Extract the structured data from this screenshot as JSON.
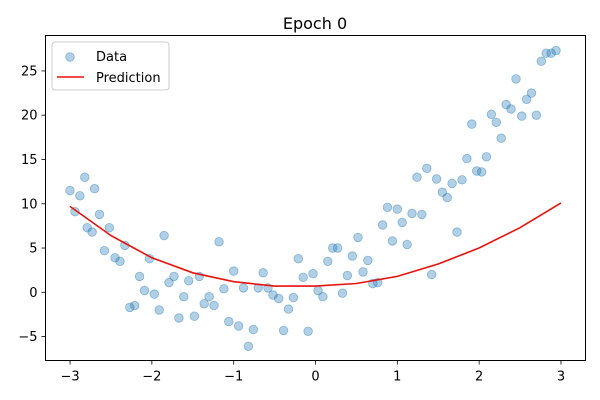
{
  "chart_data": {
    "type": "scatter",
    "title": "Epoch 0",
    "xlabel": "",
    "ylabel": "",
    "xlim": [
      -3.3,
      3.3
    ],
    "ylim": [
      -7.7,
      29.0
    ],
    "xticks": [
      -3,
      -2,
      -1,
      0,
      1,
      2,
      3
    ],
    "yticks": [
      -5,
      0,
      5,
      10,
      15,
      20,
      25
    ],
    "grid": false,
    "legend": {
      "placement": "top-left",
      "entries": [
        "Data",
        "Prediction"
      ]
    },
    "colors": {
      "data": "#1f77b4",
      "prediction": "#e8120c"
    },
    "series": [
      {
        "name": "Data",
        "kind": "scatter",
        "points": [
          [
            -3.0,
            11.5
          ],
          [
            -2.94,
            9.1
          ],
          [
            -2.88,
            10.9
          ],
          [
            -2.82,
            13.0
          ],
          [
            -2.79,
            7.3
          ],
          [
            -2.73,
            6.8
          ],
          [
            -2.7,
            11.7
          ],
          [
            -2.64,
            8.8
          ],
          [
            -2.58,
            4.7
          ],
          [
            -2.52,
            7.3
          ],
          [
            -2.45,
            3.9
          ],
          [
            -2.39,
            3.5
          ],
          [
            -2.33,
            5.3
          ],
          [
            -2.27,
            -1.7
          ],
          [
            -2.21,
            -1.5
          ],
          [
            -2.15,
            1.8
          ],
          [
            -2.09,
            0.2
          ],
          [
            -2.03,
            3.8
          ],
          [
            -1.97,
            -0.2
          ],
          [
            -1.91,
            -2.0
          ],
          [
            -1.85,
            6.4
          ],
          [
            -1.79,
            1.1
          ],
          [
            -1.73,
            1.8
          ],
          [
            -1.67,
            -2.9
          ],
          [
            -1.61,
            -0.5
          ],
          [
            -1.55,
            1.3
          ],
          [
            -1.48,
            -2.7
          ],
          [
            -1.42,
            1.8
          ],
          [
            -1.36,
            -1.3
          ],
          [
            -1.3,
            -0.5
          ],
          [
            -1.24,
            -1.5
          ],
          [
            -1.18,
            5.7
          ],
          [
            -1.12,
            0.4
          ],
          [
            -1.06,
            -3.3
          ],
          [
            -1.0,
            2.4
          ],
          [
            -0.94,
            -3.8
          ],
          [
            -0.88,
            0.5
          ],
          [
            -0.82,
            -6.1
          ],
          [
            -0.76,
            -4.2
          ],
          [
            -0.7,
            0.5
          ],
          [
            -0.64,
            2.2
          ],
          [
            -0.58,
            0.5
          ],
          [
            -0.52,
            -0.3
          ],
          [
            -0.45,
            -0.7
          ],
          [
            -0.39,
            -4.3
          ],
          [
            -0.33,
            -1.9
          ],
          [
            -0.27,
            -0.6
          ],
          [
            -0.21,
            3.8
          ],
          [
            -0.15,
            1.7
          ],
          [
            -0.09,
            -4.4
          ],
          [
            -0.03,
            2.1
          ],
          [
            0.03,
            0.2
          ],
          [
            0.09,
            -0.5
          ],
          [
            0.15,
            3.5
          ],
          [
            0.21,
            5.0
          ],
          [
            0.27,
            5.0
          ],
          [
            0.33,
            -0.1
          ],
          [
            0.39,
            1.9
          ],
          [
            0.45,
            4.1
          ],
          [
            0.52,
            6.2
          ],
          [
            0.58,
            2.3
          ],
          [
            0.64,
            3.6
          ],
          [
            0.7,
            1.0
          ],
          [
            0.76,
            1.1
          ],
          [
            0.82,
            7.6
          ],
          [
            0.88,
            9.6
          ],
          [
            0.94,
            5.8
          ],
          [
            1.0,
            9.4
          ],
          [
            1.06,
            7.9
          ],
          [
            1.12,
            5.4
          ],
          [
            1.18,
            8.9
          ],
          [
            1.24,
            13.0
          ],
          [
            1.3,
            8.8
          ],
          [
            1.36,
            14.0
          ],
          [
            1.42,
            2.0
          ],
          [
            1.48,
            12.8
          ],
          [
            1.55,
            11.3
          ],
          [
            1.61,
            10.7
          ],
          [
            1.67,
            12.3
          ],
          [
            1.73,
            6.8
          ],
          [
            1.79,
            12.7
          ],
          [
            1.85,
            15.1
          ],
          [
            1.91,
            19.0
          ],
          [
            1.97,
            13.7
          ],
          [
            2.03,
            13.6
          ],
          [
            2.09,
            15.3
          ],
          [
            2.15,
            20.1
          ],
          [
            2.21,
            19.2
          ],
          [
            2.27,
            17.4
          ],
          [
            2.33,
            21.2
          ],
          [
            2.39,
            20.7
          ],
          [
            2.45,
            24.1
          ],
          [
            2.52,
            19.9
          ],
          [
            2.58,
            21.8
          ],
          [
            2.64,
            22.5
          ],
          [
            2.7,
            20.0
          ],
          [
            2.76,
            26.1
          ],
          [
            2.82,
            27.0
          ],
          [
            2.88,
            27.0
          ],
          [
            2.94,
            27.3
          ]
        ]
      },
      {
        "name": "Prediction",
        "kind": "line",
        "x": [
          -3.0,
          -2.5,
          -2.0,
          -1.5,
          -1.0,
          -0.5,
          0.0,
          0.5,
          1.0,
          1.5,
          2.0,
          2.5,
          3.0
        ],
        "y": [
          9.7,
          6.4,
          3.9,
          2.2,
          1.2,
          0.7,
          0.7,
          1.0,
          1.8,
          3.2,
          5.0,
          7.3,
          10.1
        ]
      }
    ]
  }
}
